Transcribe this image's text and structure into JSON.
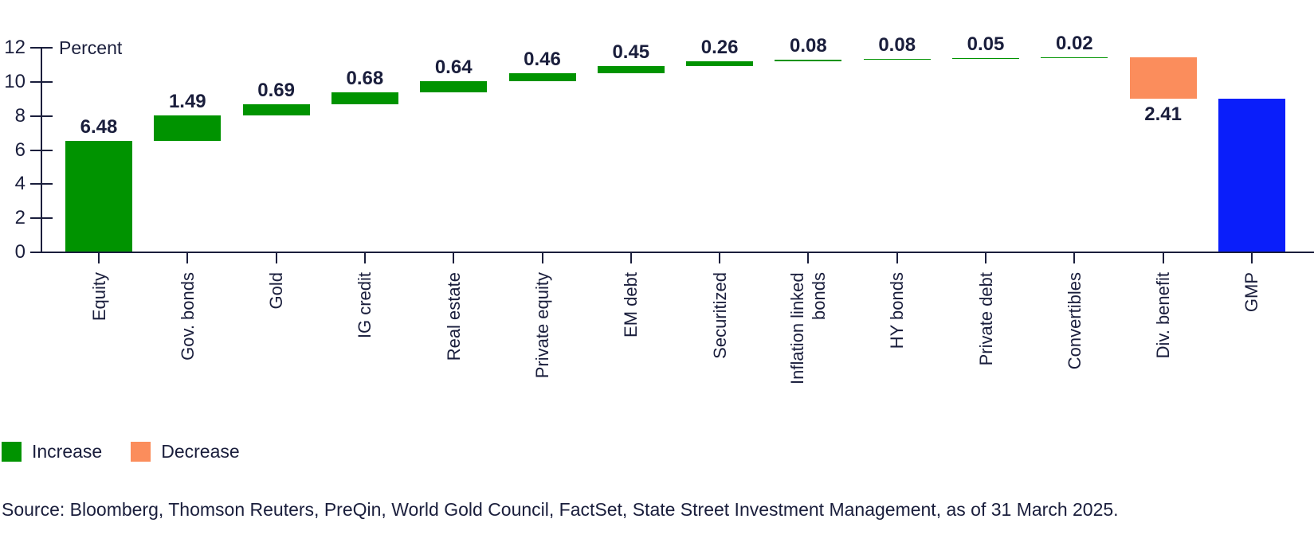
{
  "chart_data": {
    "type": "bar",
    "subtype": "waterfall",
    "title": "",
    "xlabel": "",
    "ylabel": "Percent",
    "ylim": [
      0,
      12
    ],
    "yticks": [
      0,
      2,
      4,
      6,
      8,
      10,
      12
    ],
    "grid": false,
    "legend_position": "bottom-left",
    "categories": [
      "Equity",
      "Gov. bonds",
      "Gold",
      "IG credit",
      "Real estate",
      "Private equity",
      "EM debt",
      "Securitized",
      "Inflation linked bonds",
      "HY bonds",
      "Private debt",
      "Convertibles",
      "Div. benefit",
      "GMP"
    ],
    "values": [
      6.48,
      1.49,
      0.69,
      0.68,
      0.64,
      0.46,
      0.45,
      0.26,
      0.08,
      0.08,
      0.05,
      0.02,
      -2.41,
      8.97
    ],
    "bar_labels": [
      "6.48",
      "1.49",
      "0.69",
      "0.68",
      "0.64",
      "0.46",
      "0.45",
      "0.26",
      "0.08",
      "0.08",
      "0.05",
      "0.02",
      "2.41",
      ""
    ],
    "kinds": [
      "increase",
      "increase",
      "increase",
      "increase",
      "increase",
      "increase",
      "increase",
      "increase",
      "increase",
      "increase",
      "increase",
      "increase",
      "decrease",
      "total"
    ],
    "colors": {
      "increase": "#009300",
      "decrease": "#FB8D5C",
      "total": "#0A1EFA"
    }
  },
  "legend": {
    "items": [
      {
        "label": "Increase",
        "kind": "increase",
        "color": "#009300"
      },
      {
        "label": "Decrease",
        "kind": "decrease",
        "color": "#FB8D5C"
      }
    ]
  },
  "source": {
    "text": "Source: Bloomberg, Thomson Reuters, PreQin, World Gold Council, FactSet, State Street Investment Management, as of 31 March 2025."
  },
  "theme": {
    "text_color": "#1A1E3C",
    "background": "#FFFFFF"
  }
}
